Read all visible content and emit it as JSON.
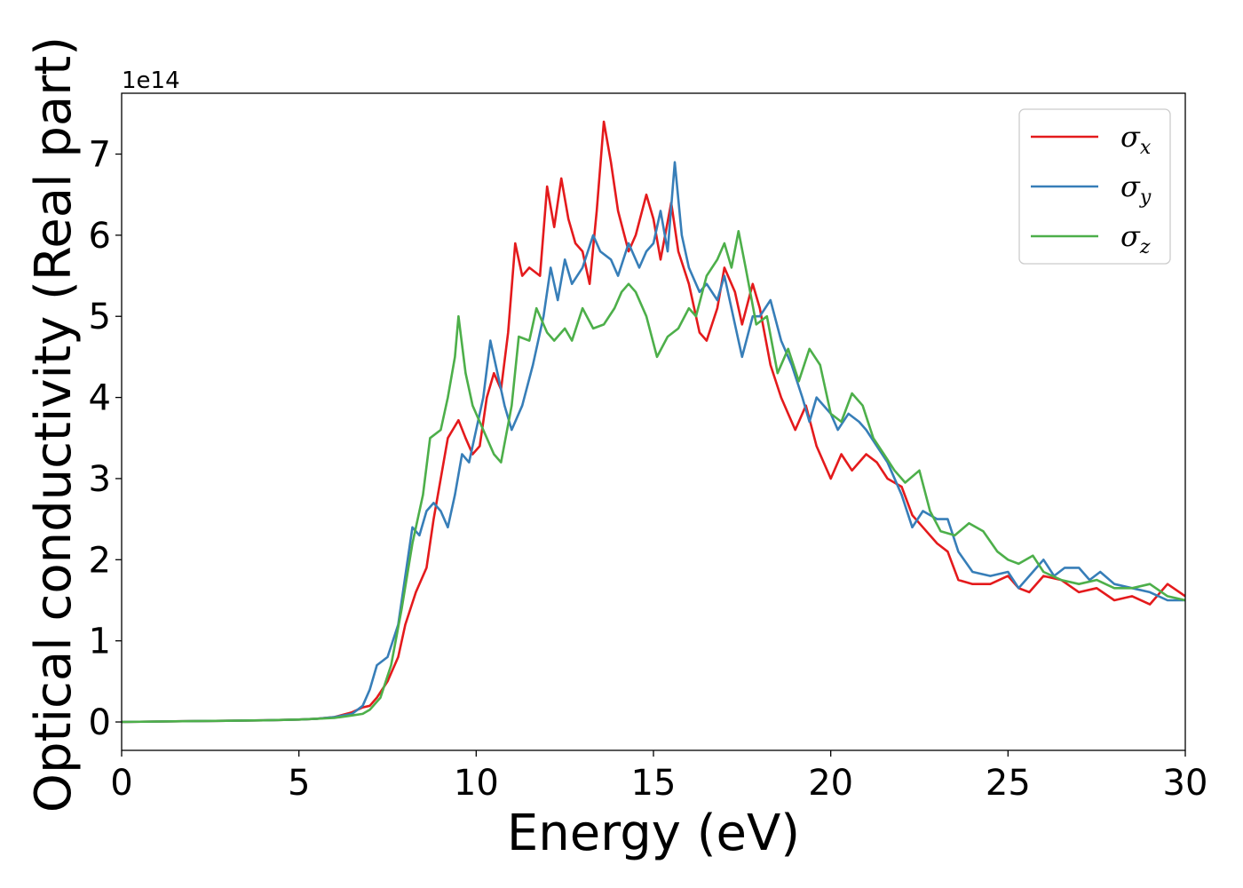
{
  "chart_data": {
    "type": "line",
    "title": "",
    "xlabel": "Energy (eV)",
    "ylabel": "Optical conductivity (Real part)",
    "y_offset_text": "1e14",
    "y_scale": 100000000000000.0,
    "xlim": [
      0,
      30
    ],
    "ylim": [
      -0.35,
      7.75
    ],
    "xticks": [
      0,
      5,
      10,
      15,
      20,
      25,
      30
    ],
    "yticks": [
      0,
      1,
      2,
      3,
      4,
      5,
      6,
      7
    ],
    "grid": false,
    "legend_position": "top-right",
    "series": [
      {
        "name": "σx",
        "legend_main": "σ",
        "legend_sub": "x",
        "color": "#e41a1c",
        "points": [
          [
            0,
            0
          ],
          [
            2,
            0.01
          ],
          [
            4,
            0.02
          ],
          [
            5,
            0.03
          ],
          [
            5.5,
            0.04
          ],
          [
            6,
            0.06
          ],
          [
            6.5,
            0.12
          ],
          [
            6.8,
            0.18
          ],
          [
            7.0,
            0.2
          ],
          [
            7.2,
            0.3
          ],
          [
            7.5,
            0.5
          ],
          [
            7.8,
            0.8
          ],
          [
            8.0,
            1.2
          ],
          [
            8.3,
            1.6
          ],
          [
            8.6,
            1.9
          ],
          [
            8.8,
            2.5
          ],
          [
            9.0,
            3.0
          ],
          [
            9.2,
            3.5
          ],
          [
            9.5,
            3.72
          ],
          [
            9.7,
            3.5
          ],
          [
            9.9,
            3.3
          ],
          [
            10.1,
            3.4
          ],
          [
            10.3,
            4.0
          ],
          [
            10.5,
            4.3
          ],
          [
            10.7,
            4.1
          ],
          [
            10.9,
            4.8
          ],
          [
            11.1,
            5.9
          ],
          [
            11.3,
            5.5
          ],
          [
            11.5,
            5.6
          ],
          [
            11.8,
            5.5
          ],
          [
            12.0,
            6.6
          ],
          [
            12.2,
            6.1
          ],
          [
            12.4,
            6.7
          ],
          [
            12.6,
            6.2
          ],
          [
            12.8,
            5.9
          ],
          [
            13.0,
            5.8
          ],
          [
            13.2,
            5.4
          ],
          [
            13.4,
            6.3
          ],
          [
            13.6,
            7.4
          ],
          [
            13.8,
            6.9
          ],
          [
            14.0,
            6.3
          ],
          [
            14.3,
            5.8
          ],
          [
            14.5,
            6.0
          ],
          [
            14.8,
            6.5
          ],
          [
            15.0,
            6.2
          ],
          [
            15.2,
            5.7
          ],
          [
            15.5,
            6.4
          ],
          [
            15.7,
            5.8
          ],
          [
            16.0,
            5.4
          ],
          [
            16.3,
            4.8
          ],
          [
            16.5,
            4.7
          ],
          [
            16.8,
            5.1
          ],
          [
            17.0,
            5.6
          ],
          [
            17.3,
            5.3
          ],
          [
            17.5,
            4.9
          ],
          [
            17.8,
            5.4
          ],
          [
            18.0,
            5.1
          ],
          [
            18.3,
            4.4
          ],
          [
            18.6,
            4.0
          ],
          [
            18.8,
            3.8
          ],
          [
            19.0,
            3.6
          ],
          [
            19.3,
            3.9
          ],
          [
            19.6,
            3.4
          ],
          [
            20.0,
            3.0
          ],
          [
            20.3,
            3.3
          ],
          [
            20.6,
            3.1
          ],
          [
            21.0,
            3.3
          ],
          [
            21.3,
            3.2
          ],
          [
            21.6,
            3.0
          ],
          [
            22.0,
            2.9
          ],
          [
            22.3,
            2.55
          ],
          [
            22.6,
            2.4
          ],
          [
            23.0,
            2.2
          ],
          [
            23.3,
            2.1
          ],
          [
            23.6,
            1.75
          ],
          [
            24.0,
            1.7
          ],
          [
            24.5,
            1.7
          ],
          [
            25.0,
            1.8
          ],
          [
            25.3,
            1.65
          ],
          [
            25.6,
            1.6
          ],
          [
            26.0,
            1.8
          ],
          [
            26.5,
            1.75
          ],
          [
            27.0,
            1.6
          ],
          [
            27.5,
            1.65
          ],
          [
            28.0,
            1.5
          ],
          [
            28.5,
            1.55
          ],
          [
            29.0,
            1.45
          ],
          [
            29.5,
            1.7
          ],
          [
            30.0,
            1.55
          ]
        ]
      },
      {
        "name": "σy",
        "legend_main": "σ",
        "legend_sub": "y",
        "color": "#377eb8",
        "points": [
          [
            0,
            0
          ],
          [
            2,
            0.01
          ],
          [
            4,
            0.02
          ],
          [
            5,
            0.03
          ],
          [
            5.5,
            0.04
          ],
          [
            6,
            0.06
          ],
          [
            6.5,
            0.1
          ],
          [
            6.8,
            0.2
          ],
          [
            7.0,
            0.4
          ],
          [
            7.2,
            0.7
          ],
          [
            7.5,
            0.8
          ],
          [
            7.8,
            1.2
          ],
          [
            8.0,
            1.8
          ],
          [
            8.2,
            2.4
          ],
          [
            8.4,
            2.3
          ],
          [
            8.6,
            2.6
          ],
          [
            8.8,
            2.7
          ],
          [
            9.0,
            2.6
          ],
          [
            9.2,
            2.4
          ],
          [
            9.4,
            2.8
          ],
          [
            9.6,
            3.3
          ],
          [
            9.8,
            3.2
          ],
          [
            10.0,
            3.6
          ],
          [
            10.2,
            4.0
          ],
          [
            10.4,
            4.7
          ],
          [
            10.6,
            4.3
          ],
          [
            10.8,
            3.9
          ],
          [
            11.0,
            3.6
          ],
          [
            11.3,
            3.9
          ],
          [
            11.6,
            4.4
          ],
          [
            11.9,
            5.0
          ],
          [
            12.1,
            5.6
          ],
          [
            12.3,
            5.2
          ],
          [
            12.5,
            5.7
          ],
          [
            12.7,
            5.4
          ],
          [
            13.0,
            5.6
          ],
          [
            13.3,
            6.0
          ],
          [
            13.5,
            5.8
          ],
          [
            13.8,
            5.7
          ],
          [
            14.0,
            5.5
          ],
          [
            14.3,
            5.9
          ],
          [
            14.6,
            5.6
          ],
          [
            14.8,
            5.8
          ],
          [
            15.0,
            5.9
          ],
          [
            15.2,
            6.3
          ],
          [
            15.4,
            5.8
          ],
          [
            15.6,
            6.9
          ],
          [
            15.8,
            6.0
          ],
          [
            16.0,
            5.6
          ],
          [
            16.3,
            5.3
          ],
          [
            16.5,
            5.4
          ],
          [
            16.8,
            5.2
          ],
          [
            17.0,
            5.5
          ],
          [
            17.3,
            4.9
          ],
          [
            17.5,
            4.5
          ],
          [
            17.8,
            5.0
          ],
          [
            18.0,
            5.0
          ],
          [
            18.3,
            5.2
          ],
          [
            18.6,
            4.7
          ],
          [
            18.9,
            4.4
          ],
          [
            19.2,
            4.0
          ],
          [
            19.4,
            3.7
          ],
          [
            19.6,
            4.0
          ],
          [
            20.0,
            3.8
          ],
          [
            20.2,
            3.6
          ],
          [
            20.5,
            3.8
          ],
          [
            20.8,
            3.7
          ],
          [
            21.0,
            3.6
          ],
          [
            21.3,
            3.4
          ],
          [
            21.6,
            3.2
          ],
          [
            22.0,
            2.8
          ],
          [
            22.3,
            2.4
          ],
          [
            22.6,
            2.6
          ],
          [
            23.0,
            2.5
          ],
          [
            23.3,
            2.5
          ],
          [
            23.6,
            2.1
          ],
          [
            24.0,
            1.85
          ],
          [
            24.5,
            1.8
          ],
          [
            25.0,
            1.85
          ],
          [
            25.3,
            1.65
          ],
          [
            25.6,
            1.8
          ],
          [
            26.0,
            2.0
          ],
          [
            26.3,
            1.8
          ],
          [
            26.6,
            1.9
          ],
          [
            27.0,
            1.9
          ],
          [
            27.3,
            1.75
          ],
          [
            27.6,
            1.85
          ],
          [
            28.0,
            1.7
          ],
          [
            28.5,
            1.65
          ],
          [
            29.0,
            1.6
          ],
          [
            29.5,
            1.5
          ],
          [
            30.0,
            1.5
          ]
        ]
      },
      {
        "name": "σz",
        "legend_main": "σ",
        "legend_sub": "z",
        "color": "#4daf4a",
        "points": [
          [
            0,
            0
          ],
          [
            2,
            0.01
          ],
          [
            4,
            0.02
          ],
          [
            5,
            0.03
          ],
          [
            5.5,
            0.04
          ],
          [
            6,
            0.05
          ],
          [
            6.5,
            0.08
          ],
          [
            6.8,
            0.1
          ],
          [
            7.0,
            0.15
          ],
          [
            7.3,
            0.3
          ],
          [
            7.6,
            0.7
          ],
          [
            7.9,
            1.4
          ],
          [
            8.2,
            2.2
          ],
          [
            8.5,
            2.8
          ],
          [
            8.7,
            3.5
          ],
          [
            9.0,
            3.6
          ],
          [
            9.2,
            4.0
          ],
          [
            9.4,
            4.5
          ],
          [
            9.5,
            5.0
          ],
          [
            9.7,
            4.3
          ],
          [
            9.9,
            3.9
          ],
          [
            10.2,
            3.6
          ],
          [
            10.5,
            3.3
          ],
          [
            10.7,
            3.2
          ],
          [
            11.0,
            3.9
          ],
          [
            11.2,
            4.75
          ],
          [
            11.5,
            4.7
          ],
          [
            11.7,
            5.1
          ],
          [
            12.0,
            4.8
          ],
          [
            12.2,
            4.7
          ],
          [
            12.5,
            4.85
          ],
          [
            12.7,
            4.7
          ],
          [
            13.0,
            5.1
          ],
          [
            13.3,
            4.85
          ],
          [
            13.6,
            4.9
          ],
          [
            13.9,
            5.1
          ],
          [
            14.1,
            5.3
          ],
          [
            14.3,
            5.4
          ],
          [
            14.5,
            5.3
          ],
          [
            14.8,
            5.0
          ],
          [
            15.1,
            4.5
          ],
          [
            15.4,
            4.75
          ],
          [
            15.7,
            4.85
          ],
          [
            16.0,
            5.1
          ],
          [
            16.2,
            5.0
          ],
          [
            16.5,
            5.5
          ],
          [
            16.8,
            5.7
          ],
          [
            17.0,
            5.9
          ],
          [
            17.2,
            5.6
          ],
          [
            17.4,
            6.05
          ],
          [
            17.6,
            5.6
          ],
          [
            17.9,
            4.9
          ],
          [
            18.2,
            5.0
          ],
          [
            18.5,
            4.3
          ],
          [
            18.8,
            4.6
          ],
          [
            19.1,
            4.2
          ],
          [
            19.4,
            4.6
          ],
          [
            19.7,
            4.4
          ],
          [
            20.0,
            3.8
          ],
          [
            20.3,
            3.7
          ],
          [
            20.6,
            4.05
          ],
          [
            20.9,
            3.9
          ],
          [
            21.2,
            3.5
          ],
          [
            21.5,
            3.3
          ],
          [
            21.8,
            3.1
          ],
          [
            22.1,
            2.95
          ],
          [
            22.5,
            3.1
          ],
          [
            22.8,
            2.6
          ],
          [
            23.1,
            2.35
          ],
          [
            23.5,
            2.3
          ],
          [
            23.9,
            2.45
          ],
          [
            24.3,
            2.35
          ],
          [
            24.7,
            2.1
          ],
          [
            25.0,
            2.0
          ],
          [
            25.3,
            1.95
          ],
          [
            25.7,
            2.05
          ],
          [
            26.0,
            1.85
          ],
          [
            26.5,
            1.75
          ],
          [
            27.0,
            1.7
          ],
          [
            27.5,
            1.75
          ],
          [
            28.0,
            1.65
          ],
          [
            28.5,
            1.65
          ],
          [
            29.0,
            1.7
          ],
          [
            29.5,
            1.55
          ],
          [
            30.0,
            1.5
          ]
        ]
      }
    ]
  }
}
